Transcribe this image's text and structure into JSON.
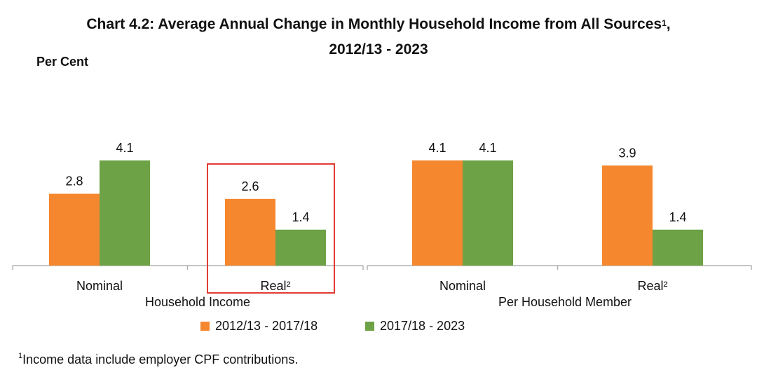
{
  "title_line1": "Chart 4.2: Average Annual Change in Monthly Household Income from All Sources",
  "title_sup": "1",
  "title_comma": ",",
  "title_line2": "2012/13 - 2023",
  "unit_label": "Per Cent",
  "footnote_sup": "1",
  "footnote_text": "Income data include employer CPF contributions.",
  "colors": {
    "series1": "#f5872e",
    "series2": "#6ea246",
    "axis": "#b0b0b0",
    "highlight": "#e23b35"
  },
  "chart_data": {
    "type": "bar",
    "groups": [
      {
        "label": "Household Income",
        "categories": [
          "Nominal",
          "Real²"
        ]
      },
      {
        "label": "Per Household Member",
        "categories": [
          "Nominal",
          "Real²"
        ]
      }
    ],
    "series": [
      {
        "name": "2012/13 - 2017/18",
        "values": [
          2.8,
          2.6,
          4.1,
          3.9
        ]
      },
      {
        "name": "2017/18 - 2023",
        "values": [
          4.1,
          1.4,
          4.1,
          1.4
        ]
      }
    ],
    "ylim": [
      0,
      5.5
    ],
    "grid": false,
    "legend": "bottom",
    "highlight": {
      "group": "Household Income",
      "category": "Real²"
    }
  }
}
